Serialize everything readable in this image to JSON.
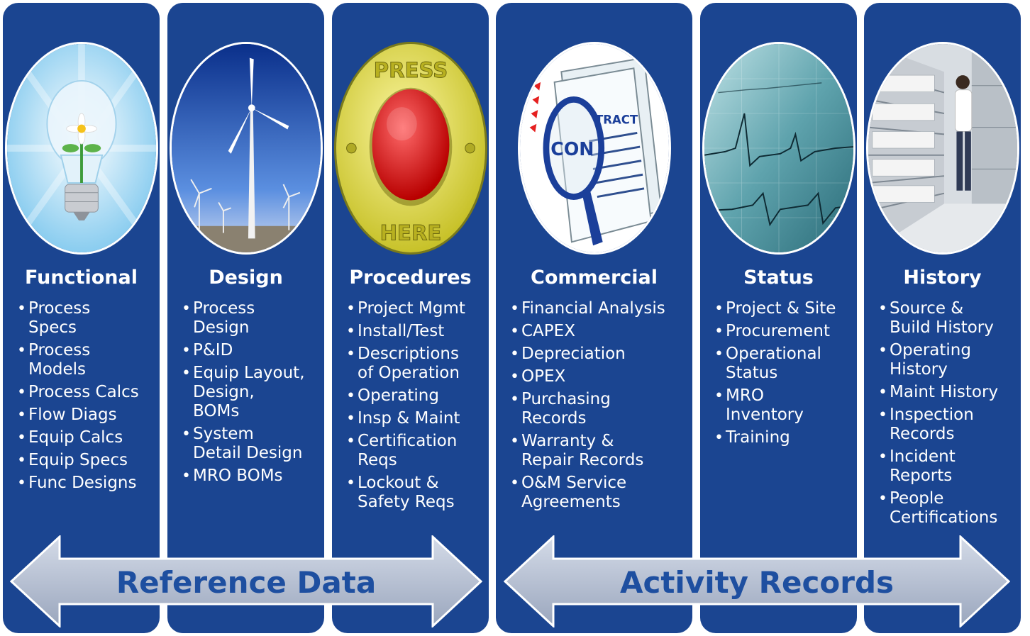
{
  "columns": [
    {
      "title": "Functional",
      "items": [
        "Process\nSpecs",
        "Process\nModels",
        "Process Calcs",
        "Flow Diags",
        "Equip Calcs",
        "Equip Specs",
        "Func Designs"
      ]
    },
    {
      "title": "Design",
      "items": [
        "Process\nDesign",
        "P&ID",
        "Equip Layout,\nDesign,\nBOMs",
        "System\nDetail Design",
        "MRO BOMs"
      ]
    },
    {
      "title": "Procedures",
      "items": [
        "Project Mgmt",
        "Install/Test",
        "Descriptions\nof Operation",
        "Operating",
        "Insp & Maint",
        "Certification\nReqs",
        "Lockout &\nSafety Reqs"
      ]
    },
    {
      "title": "Commercial",
      "items": [
        "Financial Analysis",
        "CAPEX",
        "Depreciation",
        "OPEX",
        "Purchasing\nRecords",
        "Warranty &\nRepair Records",
        "O&M Service\nAgreements"
      ]
    },
    {
      "title": "Status",
      "items": [
        "Project & Site",
        "Procurement",
        "Operational\nStatus",
        "MRO\nInventory",
        "Training"
      ]
    },
    {
      "title": "History",
      "items": [
        "Source &\nBuild History",
        "Operating\nHistory",
        "Maint History",
        "Inspection\nRecords",
        "Incident\nReports",
        "People\nCertifications"
      ]
    }
  ],
  "arrows": {
    "reference": "Reference Data",
    "activity": "Activity Records"
  },
  "images": {
    "functional": "lightbulb-flower-image",
    "design": "wind-turbine-image",
    "procedures": "press-here-button-image",
    "press_top": "PRESS",
    "press_bottom": "HERE",
    "commercial": "contract-magnifier-image",
    "contract_left": "CON",
    "contract_right": "TRACT",
    "status": "ekg-trace-image",
    "history": "records-archive-image"
  },
  "colors": {
    "column_bg": "#1b4591",
    "arrow_fill": "#b8c2d6",
    "arrow_text": "#1e4fa0"
  }
}
